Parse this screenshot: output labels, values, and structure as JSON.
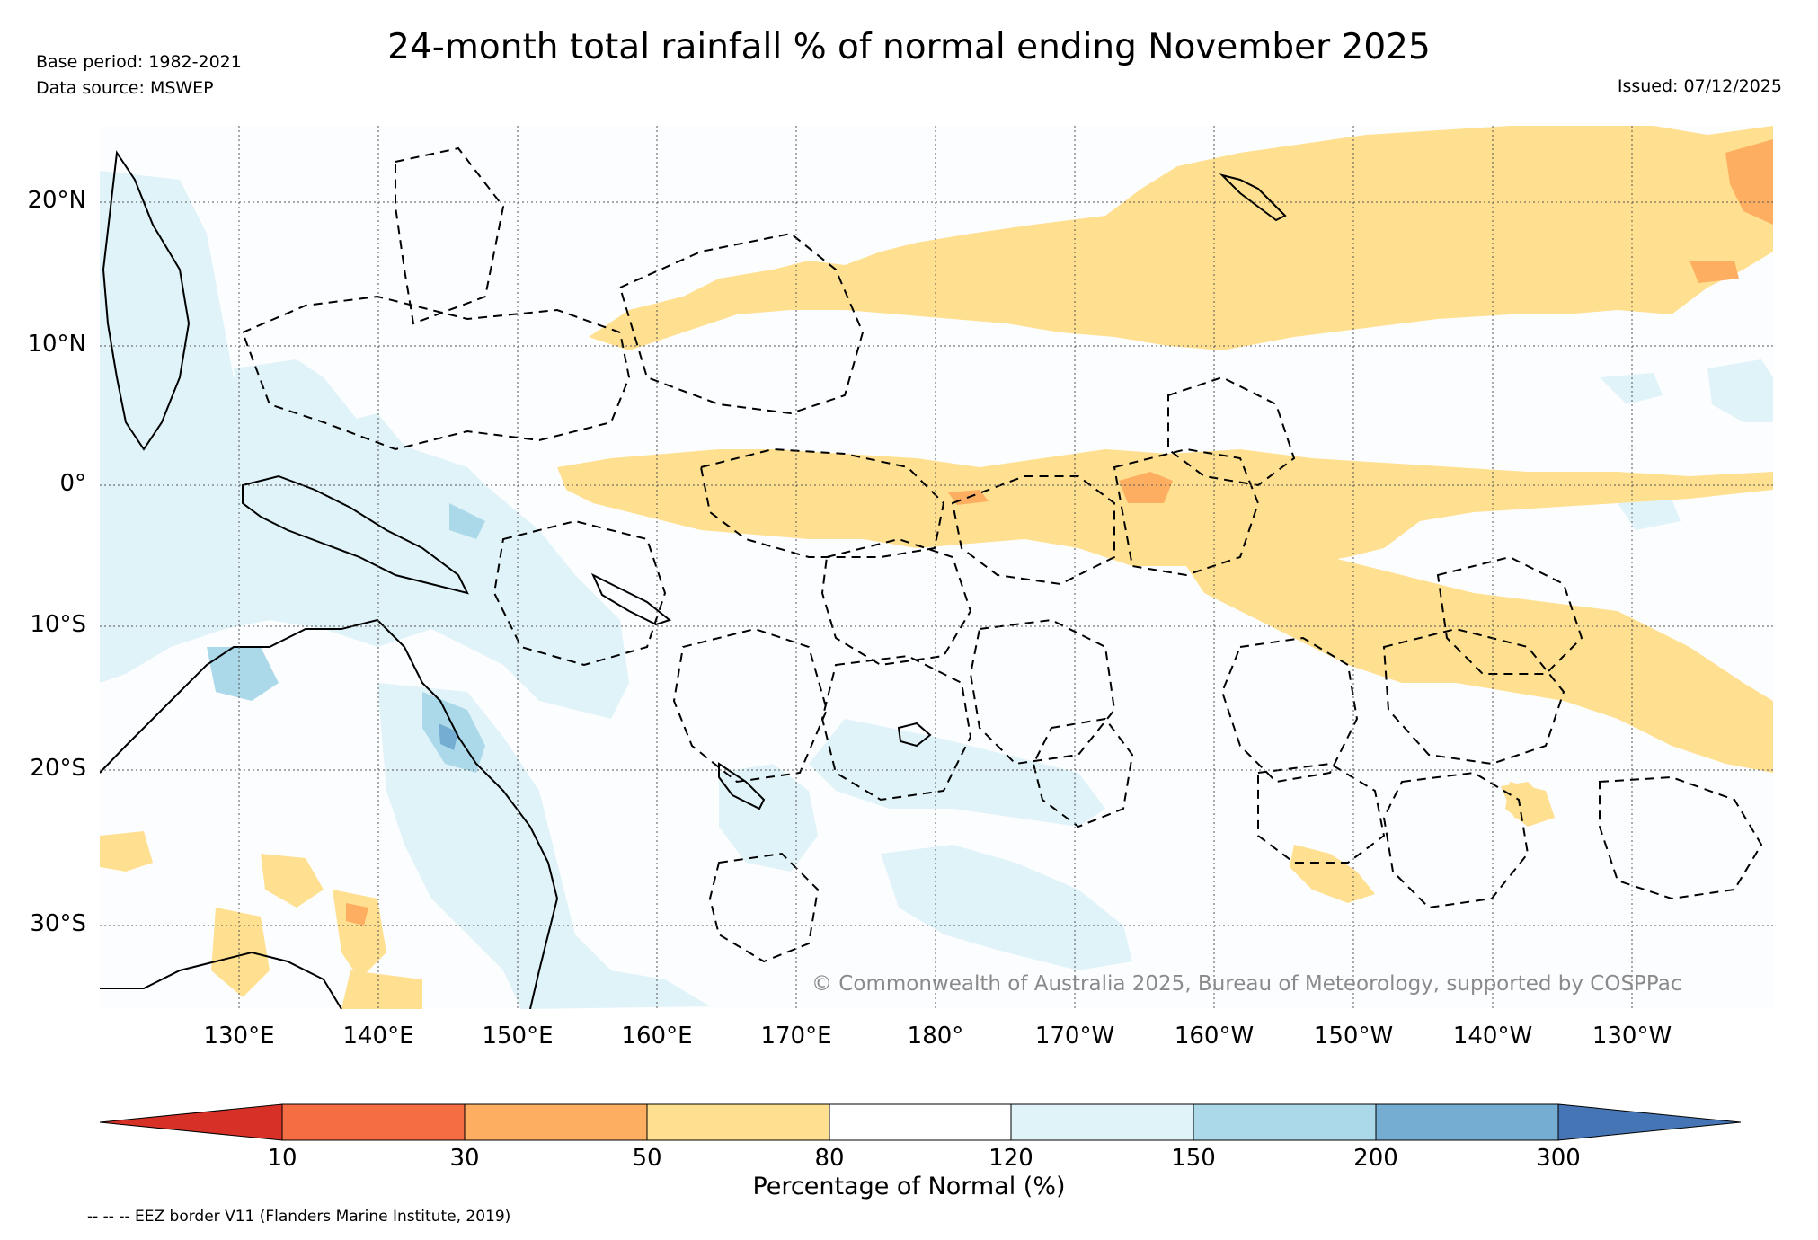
{
  "title": "24-month total rainfall % of normal ending November 2025",
  "base_period": "Base period: 1982-2021",
  "data_source": "Data source: MSWEP",
  "issued": "Issued: 07/12/2025",
  "copyright": "© Commonwealth of Australia 2025, Bureau of Meteorology, supported by COSPPac",
  "lat_labels": [
    "20°N",
    "10°N",
    "0°",
    "10°S",
    "20°S",
    "30°S"
  ],
  "lon_labels": [
    "130°E",
    "140°E",
    "150°E",
    "160°E",
    "170°E",
    "180°",
    "170°W",
    "160°W",
    "150°W",
    "140°W",
    "130°W"
  ],
  "colorbar": {
    "title": "Percentage of Normal (%)",
    "ticks": [
      "10",
      "30",
      "50",
      "80",
      "120",
      "150",
      "200",
      "300"
    ],
    "colors": [
      "#d73027",
      "#f46d43",
      "#fdae61",
      "#fee090",
      "#ffffff",
      "#e0f3f8",
      "#abd9e9",
      "#74add1",
      "#4575b4"
    ]
  },
  "eez_note": "-- -- -- EEZ border V11 (Flanders Marine Institute, 2019)",
  "colors": {
    "dry_light": "#fee090",
    "dry_mid": "#fdae61",
    "wet_light": "#e0f3f8",
    "wet_mid": "#abd9e9",
    "wet_deep": "#74add1"
  }
}
